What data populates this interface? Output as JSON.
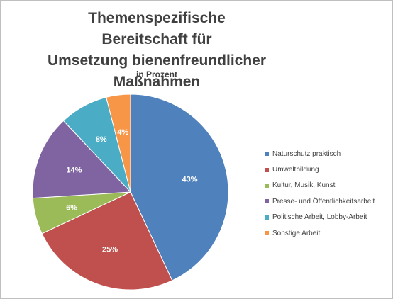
{
  "chart_data": {
    "type": "pie",
    "title": "Themenspezifische Bereitschaft für\nUmsetzung bienenfreundlicher\nMaßnahmen",
    "subtitle": "in Prozent",
    "legend_position": "right",
    "start_angle_deg": 0,
    "direction": "clockwise",
    "slices": [
      {
        "label": "Naturschutz praktisch",
        "value": 43,
        "value_label": "43%",
        "color": "#4F81BD"
      },
      {
        "label": "Umweltbildung",
        "value": 25,
        "value_label": "25%",
        "color": "#C0504D"
      },
      {
        "label": "Kultur, Musik, Kunst",
        "value": 6,
        "value_label": "6%",
        "color": "#9BBB59"
      },
      {
        "label": "Presse- und Öffentlichkeitsarbeit",
        "value": 14,
        "value_label": "14%",
        "color": "#8064A2"
      },
      {
        "label": "Politische Arbeit, Lobby-Arbeit",
        "value": 8,
        "value_label": "8%",
        "color": "#4BACC6"
      },
      {
        "label": "Sonstige Arbeit",
        "value": 4,
        "value_label": "4%",
        "color": "#F79646"
      }
    ]
  }
}
